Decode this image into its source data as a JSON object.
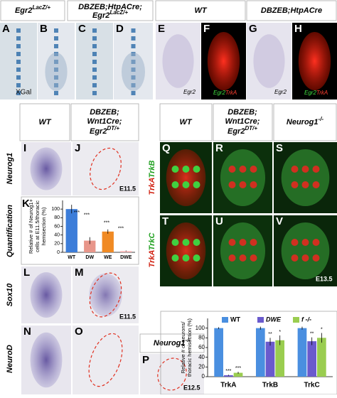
{
  "top_headers": {
    "egr2": "Egr2",
    "egr2_sup": "LacZ/+",
    "mut_line1": "DBZEB;HtpACre;",
    "mut_line2": "Egr2",
    "mut_line2_sup": "LacZ/+",
    "wt": "WT",
    "mut2": "DBZEB;HtpACre"
  },
  "panel_labels": [
    "A",
    "B",
    "C",
    "D",
    "E",
    "F",
    "G",
    "H",
    "I",
    "J",
    "K",
    "L",
    "M",
    "N",
    "O",
    "P",
    "Q",
    "R",
    "S",
    "T",
    "U",
    "V",
    "W"
  ],
  "in_panel_text": {
    "xgal": "XGal",
    "egr2_e": "Egr2",
    "egr2_f": "Egr2",
    "trka_f": "TrkA",
    "egr2_g": "Egr2",
    "egr2_h": "Egr2",
    "trka_h": "TrkA",
    "e115_j": "E11.5",
    "e115_m": "E11.5",
    "e125_p": "E12.5",
    "e135_v": "E13.5"
  },
  "middle_headers": {
    "wt_left": "WT",
    "mut_left_1": "DBZEB;",
    "mut_left_2": "Wnt1Cre;",
    "mut_left_3": "Egr2",
    "mut_left_3_sup": "DT/+",
    "wt_right": "WT",
    "mut_right_1": "DBZEB;",
    "mut_right_2": "Wnt1Cre;",
    "mut_right_3": "Egr2",
    "mut_right_3_sup": "DT/+",
    "neurog1_right": "Neurog1",
    "neurog1_right_sup": "-/-",
    "neurog1_p": "Neurog1",
    "neurog1_p_sup": "-/-"
  },
  "row_labels": {
    "neurog1": "Neurog1",
    "quantification": "Quantification",
    "sox10": "Sox10",
    "neurod": "NeuroD",
    "trka_1": "TrkA",
    "trkb": "TrkB",
    "trka_2": "TrkA",
    "trkc": "TrkC"
  },
  "chart_data": [
    {
      "type": "bar",
      "ylabel": [
        "Relative # of Neurog1+",
        "cells at E11.5/thoracic",
        "hemisection (%)"
      ],
      "categories": [
        "WT",
        "DW",
        "WE",
        "DWE"
      ],
      "values": [
        100,
        27,
        48,
        3
      ],
      "errors": [
        10,
        8,
        5,
        1
      ],
      "colors": [
        "#3c7dd9",
        "#e8968a",
        "#f08a24",
        "#f4b8b8"
      ],
      "ylim": [
        0,
        120
      ],
      "yticks": [
        0,
        20,
        40,
        60,
        80,
        100
      ],
      "annotations": [
        "***",
        "***",
        "***",
        "***"
      ]
    },
    {
      "type": "grouped_bar",
      "ylabel": [
        "Relative # of neurons/",
        "thoracic hemisection (%)"
      ],
      "categories": [
        "TrkA",
        "TrkB",
        "TrkC"
      ],
      "series": [
        {
          "name": "WT",
          "color": "#4a8fe0",
          "values": [
            100,
            100,
            100
          ],
          "errors": [
            2,
            3,
            3
          ],
          "stars": [
            null,
            null,
            null
          ]
        },
        {
          "name": "DWE",
          "color": "#6a5acd",
          "values": [
            3,
            72,
            73
          ],
          "errors": [
            1,
            8,
            8
          ],
          "stars": [
            "***",
            "**",
            "**"
          ]
        },
        {
          "name": "f -/-",
          "color": "#9acd50",
          "values": [
            8,
            75,
            80
          ],
          "errors": [
            2,
            10,
            10
          ],
          "stars": [
            "***",
            "*",
            "*"
          ]
        }
      ],
      "ylim": [
        0,
        120
      ],
      "yticks": [
        0,
        20,
        40,
        60,
        80,
        100
      ],
      "legend": "top"
    }
  ]
}
